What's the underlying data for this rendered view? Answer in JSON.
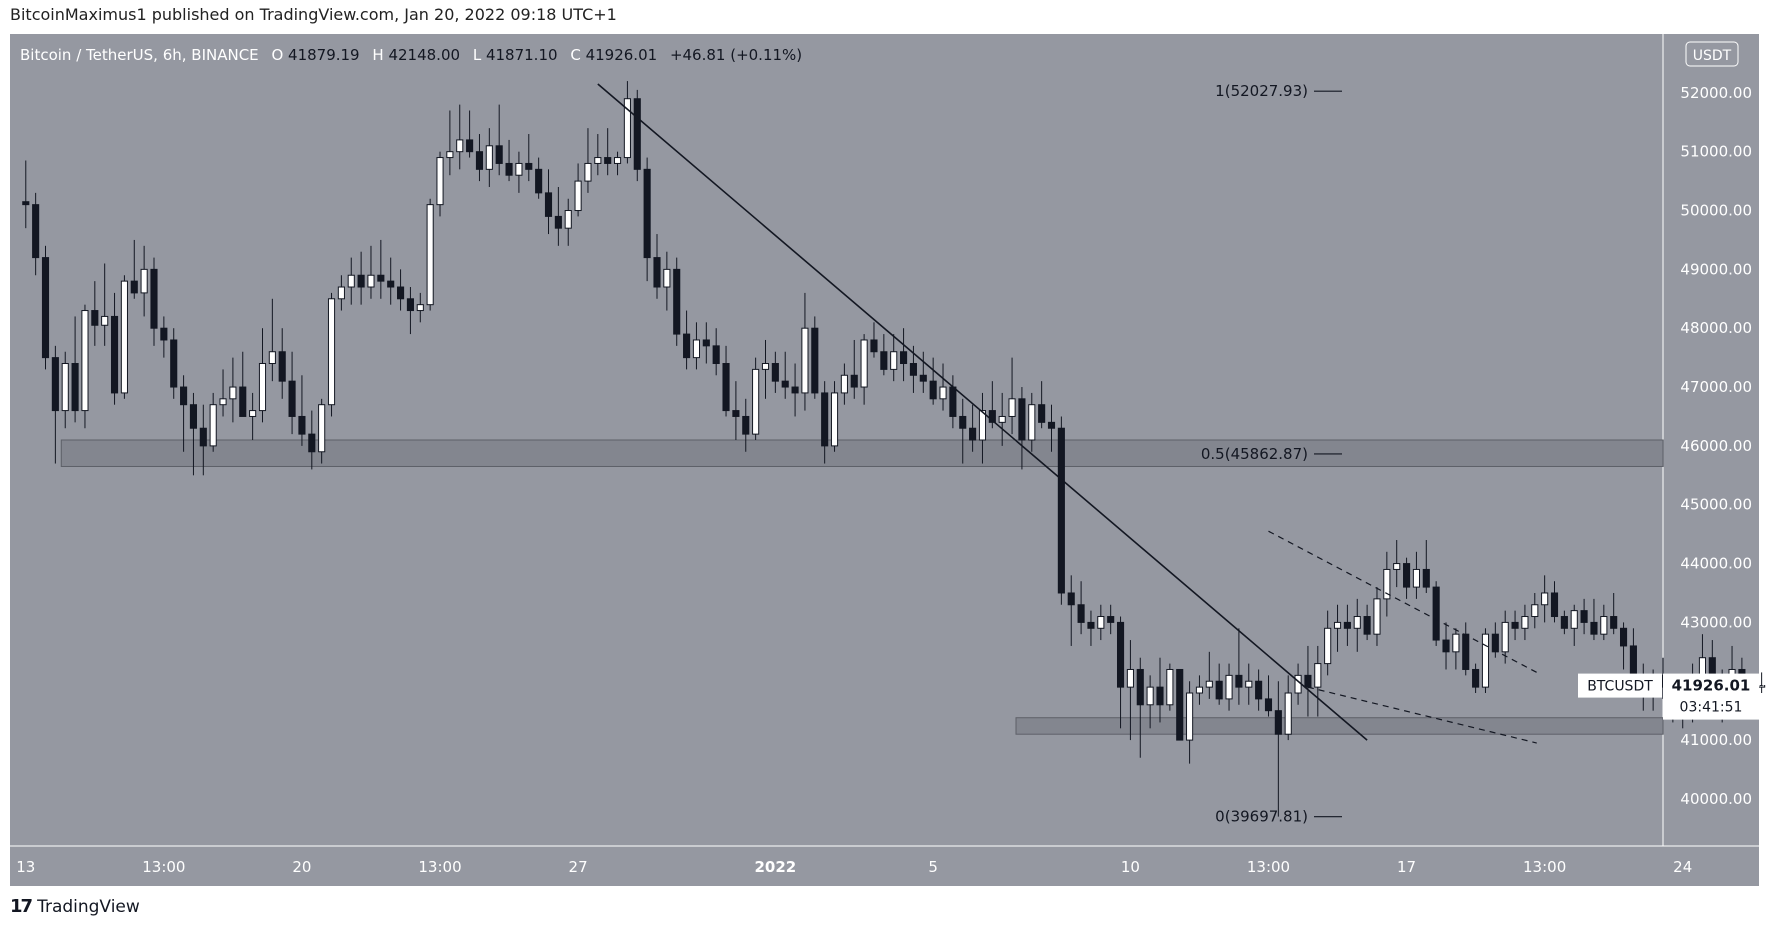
{
  "header": {
    "published": "BitcoinMaximus1 published on TradingView.com, Jan 20, 2022 09:18 UTC+1"
  },
  "footer": {
    "brand": "TradingView",
    "logo_glyph": "17"
  },
  "colors": {
    "background": "#9598a1",
    "bull": "#ffffff",
    "bear": "#131722",
    "zone": "#7d8089",
    "line": "#131722",
    "axis_text": "#ffffff"
  },
  "chart_data": {
    "type": "candlestick",
    "legend": {
      "symbol": "Bitcoin / TetherUS, 6h, BINANCE",
      "o_label": "O",
      "o": "41879.19",
      "h_label": "H",
      "h": "42148.00",
      "l_label": "L",
      "l": "41871.10",
      "c_label": "C",
      "c": "41926.01",
      "change": "+46.81 (+0.11%)"
    },
    "currency": "USDT",
    "ylim": [
      39200,
      53000
    ],
    "y_ticks": [
      {
        "v": 52000,
        "label": "52000.00"
      },
      {
        "v": 51000,
        "label": "51000.00"
      },
      {
        "v": 50000,
        "label": "50000.00"
      },
      {
        "v": 49000,
        "label": "49000.00"
      },
      {
        "v": 48000,
        "label": "48000.00"
      },
      {
        "v": 47000,
        "label": "47000.00"
      },
      {
        "v": 46000,
        "label": "46000.00"
      },
      {
        "v": 45000,
        "label": "45000.00"
      },
      {
        "v": 44000,
        "label": "44000.00"
      },
      {
        "v": 43000,
        "label": "43000.00"
      },
      {
        "v": 42000,
        "label": "42000.00"
      },
      {
        "v": 41000,
        "label": "41000.00"
      },
      {
        "v": 40000,
        "label": "40000.00"
      }
    ],
    "xlim": [
      -0.4,
      41.5
    ],
    "x_ticks": [
      {
        "v": 0,
        "label": "13",
        "bold": false
      },
      {
        "v": 3.5,
        "label": "13:00",
        "bold": false
      },
      {
        "v": 7,
        "label": "20",
        "bold": false
      },
      {
        "v": 10.5,
        "label": "13:00",
        "bold": false
      },
      {
        "v": 14,
        "label": "27",
        "bold": false
      },
      {
        "v": 19,
        "label": "2022",
        "bold": true
      },
      {
        "v": 23,
        "label": "5",
        "bold": false
      },
      {
        "v": 28,
        "label": "10",
        "bold": false
      },
      {
        "v": 31.5,
        "label": "13:00",
        "bold": false
      },
      {
        "v": 35,
        "label": "17",
        "bold": false
      },
      {
        "v": 38.5,
        "label": "13:00",
        "bold": false
      },
      {
        "v": 42,
        "label": "24",
        "bold": false
      }
    ],
    "price_label": {
      "symbol": "BTCUSDT",
      "price": "41926.01",
      "value": 41926.01,
      "countdown": "03:41:51"
    },
    "fib_levels": [
      {
        "label": "1(52027.93)",
        "value": 52027.93
      },
      {
        "label": "0.5(45862.87)",
        "value": 45862.87
      },
      {
        "label": "0(39697.81)",
        "value": 39697.81
      }
    ],
    "zones": [
      {
        "from_x": 0.9,
        "to_x": 44,
        "low": 45650,
        "high": 46100
      },
      {
        "from_x": 25.1,
        "to_x": 44,
        "low": 41100,
        "high": 41380
      }
    ],
    "lines": [
      {
        "style": "solid",
        "x1": 14.5,
        "y1": 52150,
        "x2": 34.0,
        "y2": 41000
      },
      {
        "style": "dashed",
        "x1": 31.5,
        "y1": 44550,
        "x2": 38.3,
        "y2": 42150
      },
      {
        "style": "dashed",
        "x1": 32.5,
        "y1": 41900,
        "x2": 38.3,
        "y2": 40950
      }
    ],
    "candles": [
      [
        50150,
        50850,
        49700,
        50100
      ],
      [
        50100,
        50300,
        48900,
        49200
      ],
      [
        49200,
        49400,
        47300,
        47500
      ],
      [
        47500,
        47700,
        45700,
        46600
      ],
      [
        46600,
        47600,
        46300,
        47400
      ],
      [
        47400,
        48200,
        46400,
        46600
      ],
      [
        46600,
        48400,
        46300,
        48300
      ],
      [
        48300,
        48800,
        47700,
        48050
      ],
      [
        48050,
        49100,
        47700,
        48200
      ],
      [
        48200,
        48600,
        46700,
        46900
      ],
      [
        46900,
        48900,
        46800,
        48800
      ],
      [
        48800,
        49500,
        48500,
        48600
      ],
      [
        48600,
        49400,
        48200,
        49000
      ],
      [
        49000,
        49200,
        47700,
        48000
      ],
      [
        48000,
        48200,
        47500,
        47800
      ],
      [
        47800,
        48000,
        46800,
        47000
      ],
      [
        47000,
        47200,
        45900,
        46700
      ],
      [
        46700,
        46900,
        45500,
        46300
      ],
      [
        46300,
        46700,
        45500,
        46000
      ],
      [
        46000,
        46900,
        45900,
        46700
      ],
      [
        46700,
        47300,
        46500,
        46800
      ],
      [
        46800,
        47500,
        46400,
        47000
      ],
      [
        47000,
        47600,
        46500,
        46500
      ],
      [
        46500,
        46900,
        46100,
        46600
      ],
      [
        46600,
        48000,
        46400,
        47400
      ],
      [
        47400,
        48500,
        47100,
        47600
      ],
      [
        47600,
        48000,
        46800,
        47100
      ],
      [
        47100,
        47600,
        46200,
        46500
      ],
      [
        46500,
        47200,
        46000,
        46200
      ],
      [
        46200,
        46600,
        45600,
        45900
      ],
      [
        45900,
        46800,
        45700,
        46700
      ],
      [
        46700,
        48600,
        46500,
        48500
      ],
      [
        48500,
        48900,
        48300,
        48700
      ],
      [
        48700,
        49200,
        48400,
        48900
      ],
      [
        48900,
        49300,
        48400,
        48700
      ],
      [
        48700,
        49400,
        48500,
        48900
      ],
      [
        48900,
        49500,
        48500,
        48800
      ],
      [
        48800,
        49200,
        48400,
        48700
      ],
      [
        48700,
        49000,
        48300,
        48500
      ],
      [
        48500,
        48700,
        47900,
        48300
      ],
      [
        48300,
        48600,
        48100,
        48400
      ],
      [
        48400,
        50200,
        48300,
        50100
      ],
      [
        50100,
        51000,
        49900,
        50900
      ],
      [
        50900,
        51700,
        50600,
        51000
      ],
      [
        51000,
        51800,
        50700,
        51200
      ],
      [
        51200,
        51700,
        50900,
        51000
      ],
      [
        51000,
        51300,
        50500,
        50700
      ],
      [
        50700,
        51400,
        50400,
        51100
      ],
      [
        51100,
        51800,
        50600,
        50800
      ],
      [
        50800,
        51200,
        50500,
        50600
      ],
      [
        50600,
        51000,
        50300,
        50800
      ],
      [
        50800,
        51300,
        50500,
        50700
      ],
      [
        50700,
        50900,
        50200,
        50300
      ],
      [
        50300,
        50700,
        49600,
        49900
      ],
      [
        49900,
        50400,
        49400,
        49700
      ],
      [
        49700,
        50200,
        49400,
        50000
      ],
      [
        50000,
        50800,
        49900,
        50500
      ],
      [
        50500,
        51400,
        50300,
        50800
      ],
      [
        50800,
        51300,
        50600,
        50900
      ],
      [
        50900,
        51400,
        50600,
        50800
      ],
      [
        50800,
        51000,
        50600,
        50900
      ],
      [
        50900,
        52200,
        50800,
        51900
      ],
      [
        51900,
        52050,
        50500,
        50700
      ],
      [
        50700,
        50900,
        48800,
        49200
      ],
      [
        49200,
        49600,
        48500,
        48700
      ],
      [
        48700,
        49300,
        48300,
        49000
      ],
      [
        49000,
        49200,
        47700,
        47900
      ],
      [
        47900,
        48300,
        47300,
        47500
      ],
      [
        47500,
        48100,
        47300,
        47800
      ],
      [
        47800,
        48100,
        47400,
        47700
      ],
      [
        47700,
        48000,
        47200,
        47400
      ],
      [
        47400,
        47700,
        46500,
        46600
      ],
      [
        46600,
        47100,
        46100,
        46500
      ],
      [
        46500,
        46800,
        45900,
        46200
      ],
      [
        46200,
        47500,
        46100,
        47300
      ],
      [
        47300,
        47800,
        46800,
        47400
      ],
      [
        47400,
        47600,
        46900,
        47100
      ],
      [
        47100,
        47600,
        46800,
        47000
      ],
      [
        47000,
        47400,
        46500,
        46900
      ],
      [
        46900,
        48600,
        46600,
        48000
      ],
      [
        48000,
        48200,
        46800,
        46900
      ],
      [
        46900,
        47100,
        45700,
        46000
      ],
      [
        46000,
        47100,
        45900,
        46900
      ],
      [
        46900,
        47400,
        46700,
        47200
      ],
      [
        47200,
        47800,
        46800,
        47000
      ],
      [
        47000,
        47900,
        46700,
        47800
      ],
      [
        47800,
        48100,
        47500,
        47600
      ],
      [
        47600,
        47900,
        47200,
        47300
      ],
      [
        47300,
        47900,
        47100,
        47600
      ],
      [
        47600,
        48000,
        47100,
        47400
      ],
      [
        47400,
        47700,
        46900,
        47200
      ],
      [
        47200,
        47600,
        46900,
        47100
      ],
      [
        47100,
        47500,
        46700,
        46800
      ],
      [
        46800,
        47400,
        46600,
        47000
      ],
      [
        47000,
        47200,
        46300,
        46500
      ],
      [
        46500,
        46800,
        45700,
        46300
      ],
      [
        46300,
        46700,
        45900,
        46100
      ],
      [
        46100,
        46900,
        45700,
        46600
      ],
      [
        46600,
        47100,
        46300,
        46400
      ],
      [
        46400,
        46900,
        46000,
        46500
      ],
      [
        46500,
        47500,
        46200,
        46800
      ],
      [
        46800,
        47000,
        45600,
        46100
      ],
      [
        46100,
        46900,
        45900,
        46700
      ],
      [
        46700,
        47100,
        46300,
        46400
      ],
      [
        46400,
        46700,
        45900,
        46300
      ],
      [
        46300,
        46500,
        43300,
        43500
      ],
      [
        43500,
        43800,
        42600,
        43300
      ],
      [
        43300,
        43700,
        42800,
        43000
      ],
      [
        43000,
        43200,
        42600,
        42900
      ],
      [
        42900,
        43300,
        42700,
        43100
      ],
      [
        43100,
        43300,
        42800,
        43000
      ],
      [
        43000,
        43100,
        41200,
        41900
      ],
      [
        41900,
        42700,
        41000,
        42200
      ],
      [
        42200,
        42400,
        40700,
        41600
      ],
      [
        41600,
        42100,
        41200,
        41900
      ],
      [
        41900,
        42400,
        41300,
        41600
      ],
      [
        41600,
        42300,
        41500,
        42200
      ],
      [
        42200,
        42200,
        41000,
        41000
      ],
      [
        41000,
        42000,
        40600,
        41800
      ],
      [
        41800,
        42100,
        41600,
        41900
      ],
      [
        41900,
        42500,
        41700,
        42000
      ],
      [
        42000,
        42300,
        41600,
        41700
      ],
      [
        41700,
        42300,
        41500,
        42100
      ],
      [
        42100,
        42900,
        41600,
        41900
      ],
      [
        41900,
        42300,
        41600,
        42000
      ],
      [
        42000,
        42200,
        41500,
        41700
      ],
      [
        41700,
        42100,
        41400,
        41500
      ],
      [
        41500,
        42000,
        39700,
        41100
      ],
      [
        41100,
        42100,
        41000,
        41800
      ],
      [
        41800,
        42300,
        41600,
        42100
      ],
      [
        42100,
        42600,
        41400,
        41900
      ],
      [
        41900,
        42600,
        41400,
        42300
      ],
      [
        42300,
        43200,
        42100,
        42900
      ],
      [
        42900,
        43300,
        42500,
        43000
      ],
      [
        43000,
        43300,
        42600,
        42900
      ],
      [
        42900,
        43400,
        42500,
        43100
      ],
      [
        43100,
        43300,
        42700,
        42800
      ],
      [
        42800,
        43600,
        42600,
        43400
      ],
      [
        43400,
        44200,
        43100,
        43900
      ],
      [
        43900,
        44400,
        43600,
        44000
      ],
      [
        44000,
        44100,
        43400,
        43600
      ],
      [
        43600,
        44200,
        43400,
        43900
      ],
      [
        43900,
        44400,
        43500,
        43600
      ],
      [
        43600,
        43700,
        42600,
        42700
      ],
      [
        42700,
        43000,
        42200,
        42500
      ],
      [
        42500,
        42900,
        42200,
        42800
      ],
      [
        42800,
        43000,
        42100,
        42200
      ],
      [
        42200,
        42300,
        41800,
        41900
      ],
      [
        41900,
        42900,
        41800,
        42800
      ],
      [
        42800,
        43000,
        42400,
        42500
      ],
      [
        42500,
        43200,
        42300,
        43000
      ],
      [
        43000,
        43200,
        42700,
        42900
      ],
      [
        42900,
        43300,
        42700,
        43100
      ],
      [
        43100,
        43500,
        42900,
        43300
      ],
      [
        43300,
        43800,
        43000,
        43500
      ],
      [
        43500,
        43700,
        43000,
        43100
      ],
      [
        43100,
        43200,
        42800,
        42900
      ],
      [
        42900,
        43300,
        42600,
        43200
      ],
      [
        43200,
        43400,
        42800,
        43000
      ],
      [
        43000,
        43400,
        42700,
        42800
      ],
      [
        42800,
        43300,
        42700,
        43100
      ],
      [
        43100,
        43500,
        42800,
        42900
      ],
      [
        42900,
        43000,
        42200,
        42600
      ],
      [
        42600,
        42900,
        42000,
        42100
      ],
      [
        42100,
        42300,
        41500,
        41800
      ],
      [
        41800,
        42200,
        41500,
        42100
      ],
      [
        42100,
        42400,
        41700,
        41900
      ],
      [
        41900,
        42100,
        41300,
        41500
      ],
      [
        41500,
        42000,
        41200,
        41800
      ],
      [
        41800,
        42300,
        41300,
        41600
      ],
      [
        41600,
        42800,
        41400,
        42400
      ],
      [
        42400,
        42700,
        41500,
        41700
      ],
      [
        41700,
        42200,
        41300,
        42000
      ],
      [
        42000,
        42600,
        41600,
        42200
      ],
      [
        42200,
        42400,
        41600,
        41700
      ],
      [
        41700,
        42100,
        41500,
        41900
      ],
      [
        41900,
        42150,
        41800,
        41926
      ]
    ]
  }
}
